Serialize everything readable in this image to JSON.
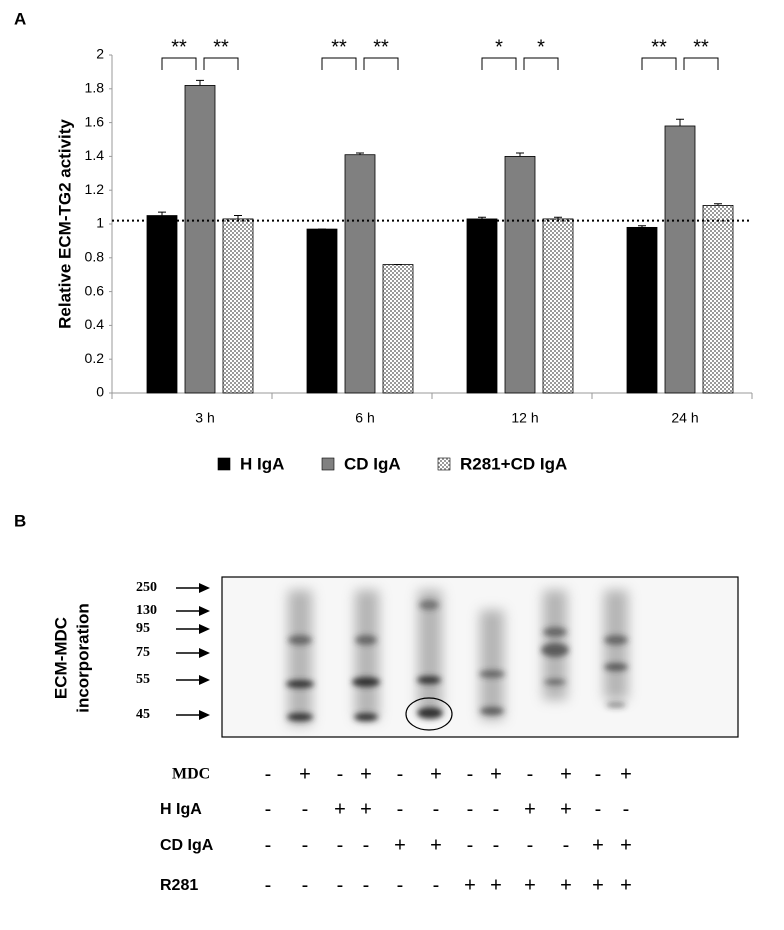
{
  "chart_data": {
    "type": "bar",
    "panel_label": "A",
    "y_label": "Relative ECM-TG2 activity",
    "categories": [
      "3 h",
      "6 h",
      "12 h",
      "24 h"
    ],
    "series": [
      {
        "name": "H IgA",
        "color": "#000000",
        "values": [
          1.05,
          0.97,
          1.03,
          0.98
        ],
        "errors": [
          0.02,
          0,
          0.01,
          0.01
        ]
      },
      {
        "name": "CD IgA",
        "color": "#808080",
        "values": [
          1.82,
          1.41,
          1.4,
          1.58
        ],
        "errors": [
          0.03,
          0.01,
          0.02,
          0.04
        ]
      },
      {
        "name": "R281+CD IgA",
        "color": "#9a9a9a",
        "pattern": "checker",
        "values": [
          1.03,
          0.76,
          1.03,
          1.11
        ],
        "errors": [
          0.02,
          0,
          0.01,
          0.01
        ]
      }
    ],
    "significance": [
      [
        "**",
        "**"
      ],
      [
        "**",
        "**"
      ],
      [
        "*",
        "*"
      ],
      [
        "**",
        "**"
      ]
    ],
    "reference_line": 1.02,
    "ylim": [
      0,
      2
    ],
    "yticks": [
      0,
      0.2,
      0.4,
      0.6,
      0.8,
      1,
      1.2,
      1.4,
      1.6,
      1.8,
      2
    ],
    "grid": false,
    "legend": "bottom"
  },
  "panel_b": {
    "panel_label": "B",
    "y_label": [
      "ECM-MDC",
      "incorporation"
    ],
    "markers": [
      "250",
      "130",
      "95",
      "75",
      "55",
      "45"
    ],
    "rows": [
      {
        "label": "MDC",
        "cells": [
          "-",
          "+",
          "-",
          "+",
          "-",
          "+",
          "-",
          "+",
          "-",
          "+",
          "-",
          "+"
        ]
      },
      {
        "label": "H IgA",
        "cells": [
          "-",
          "-",
          "+",
          "+",
          "-",
          "-",
          "-",
          "-",
          "+",
          "+",
          "-",
          "-"
        ]
      },
      {
        "label": "CD IgA",
        "cells": [
          "-",
          "-",
          "-",
          "-",
          "+",
          "+",
          "-",
          "-",
          "-",
          "-",
          "+",
          "+"
        ]
      },
      {
        "label": "R281",
        "cells": [
          "-",
          "-",
          "-",
          "-",
          "-",
          "-",
          "+",
          "+",
          "+",
          "+",
          "+",
          "+"
        ]
      }
    ]
  }
}
